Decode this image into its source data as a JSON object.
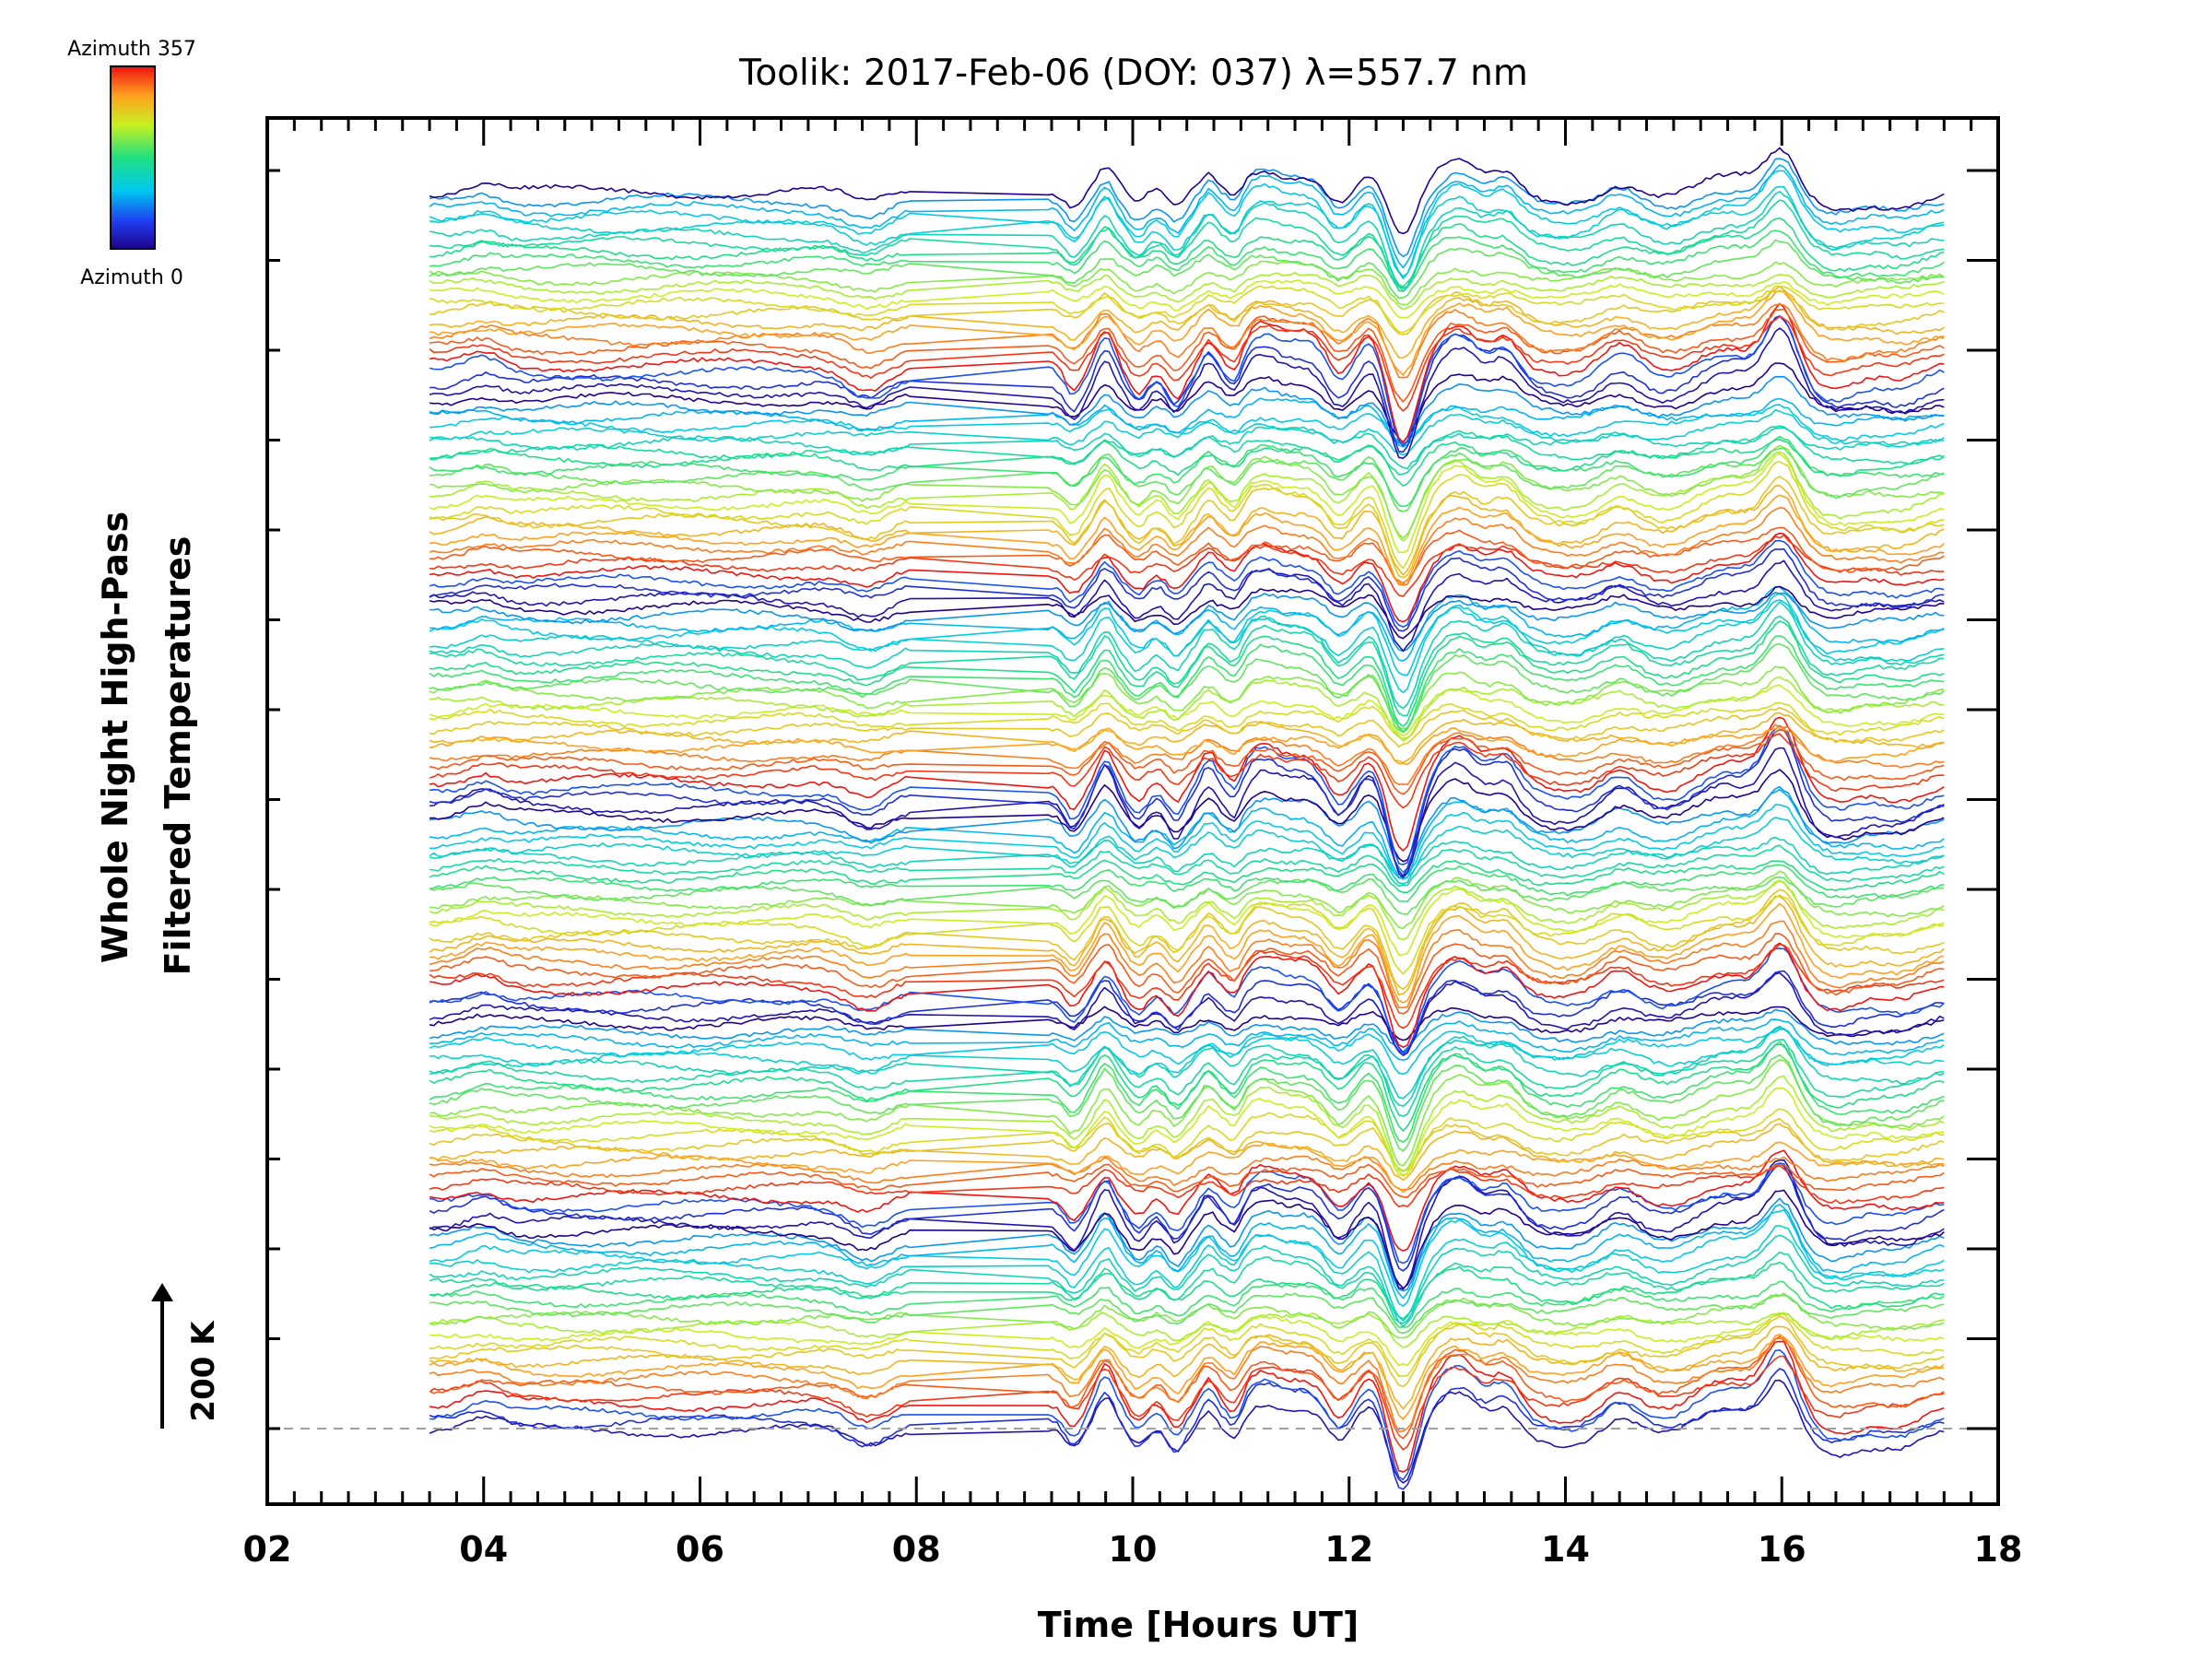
{
  "chart_data": {
    "type": "line",
    "title": "Toolik: 2017-Feb-06 (DOY: 037) λ=557.7 nm",
    "xlabel": "Time [Hours UT]",
    "ylabel_line1": "Whole Night High-Pass",
    "ylabel_line2": "Filtered Temperatures",
    "xlim": [
      2,
      18
    ],
    "x_ticks": [
      2,
      4,
      6,
      8,
      10,
      12,
      14,
      16,
      18
    ],
    "x_tick_labels": [
      "02",
      "04",
      "06",
      "08",
      "10",
      "12",
      "14",
      "16",
      "18"
    ],
    "x_start": 3.5,
    "x_end": 17.5,
    "data_gap": [
      7.95,
      9.2
    ],
    "scale_bar_label": "200 K",
    "colorbar": {
      "top_label": "Azimuth 357",
      "bottom_label": "Azimuth 0",
      "colormap": "rainbow (blue to red)"
    },
    "n_traces": 144,
    "dashed_baseline": true,
    "event_times_hours": [
      4.0,
      7.6,
      9.4,
      9.7,
      10.4,
      10.8,
      11.2,
      11.8,
      12.5,
      13.0,
      13.4,
      14.4,
      15.3,
      16.0,
      17.0
    ]
  },
  "colors": {
    "frame": "#000000",
    "baseline": "#a0a0a0",
    "background": "#ffffff"
  }
}
